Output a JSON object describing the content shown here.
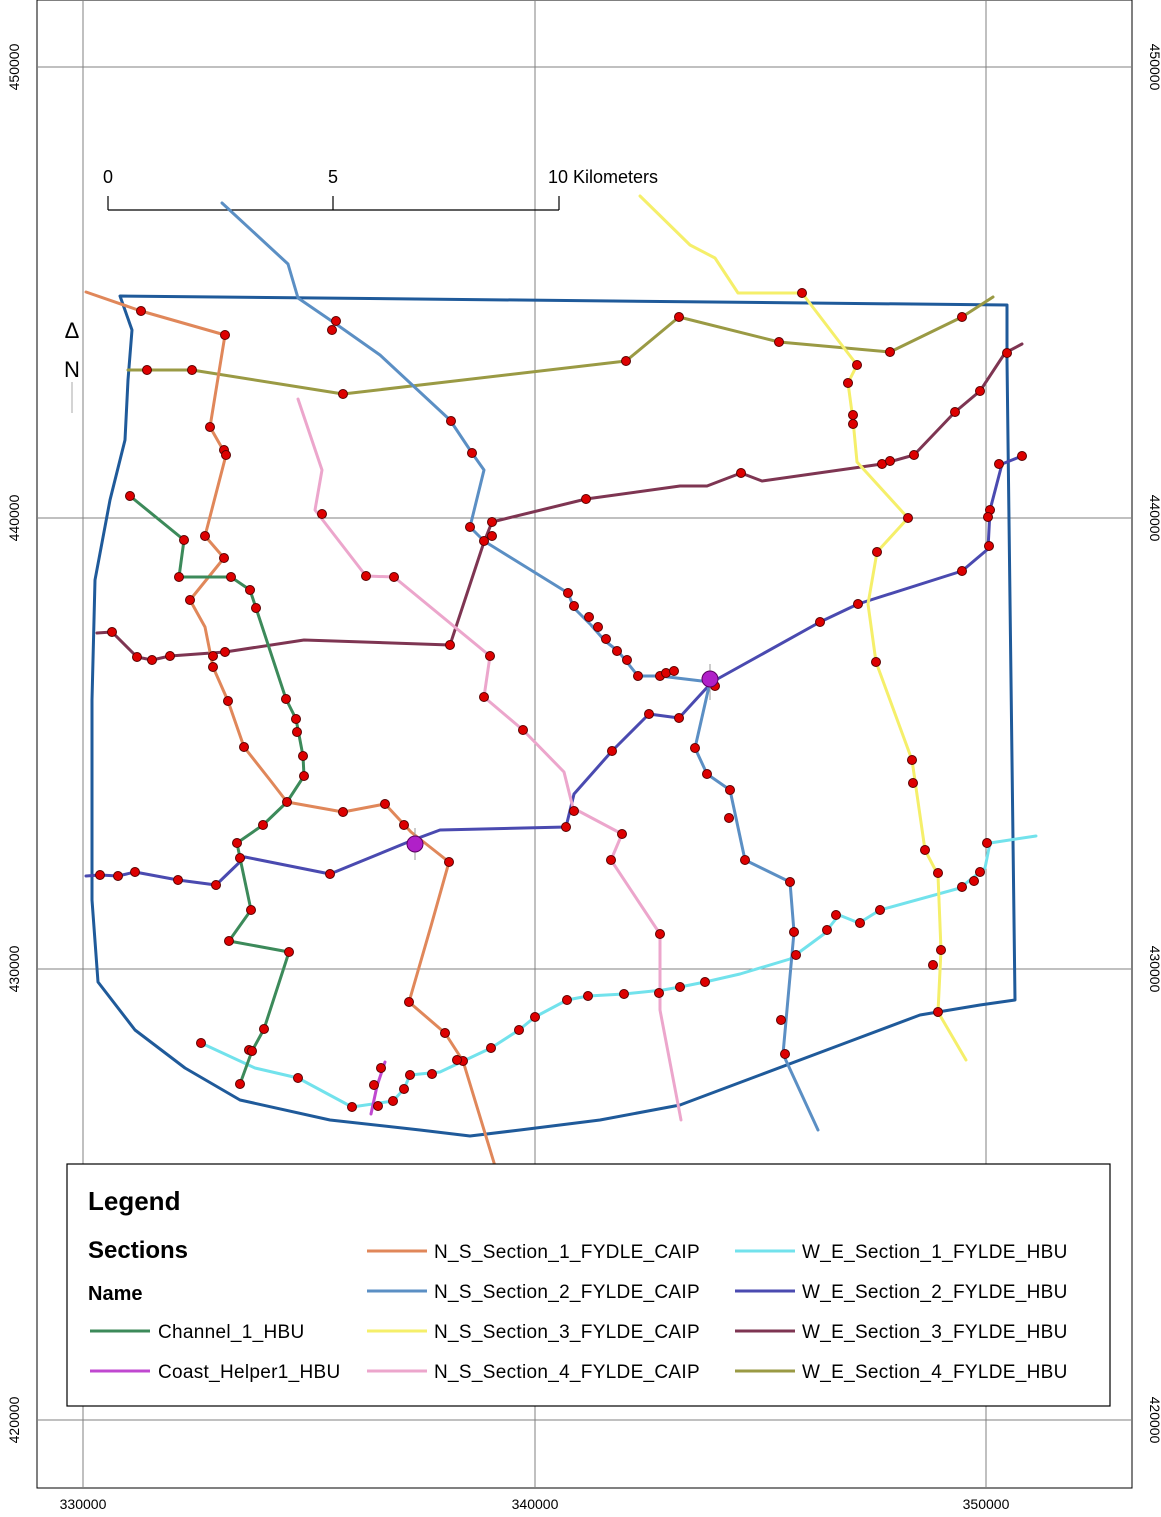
{
  "map": {
    "x_ticks": [
      "330000",
      "340000",
      "350000"
    ],
    "y_ticks": [
      "450000",
      "440000",
      "430000",
      "420000"
    ],
    "north_arrow": {
      "symbol": "Δ",
      "label": "N"
    },
    "scale_bar": {
      "labels": [
        "0",
        "5",
        "10 Kilometers"
      ]
    },
    "colors": {
      "boundary": "#1f5a9a",
      "N_S_Section_1_FYDLE_CAIP": "#e0875a",
      "N_S_Section_2_FYLDE_CAIP": "#5b8fc4",
      "N_S_Section_3_FYLDE_CAIP": "#f5ef6a",
      "N_S_Section_4_FYLDE_CAIP": "#eca6cc",
      "W_E_Section_1_FYLDE_HBU": "#72e2ec",
      "W_E_Section_2_FYLDE_HBU": "#4a4ab0",
      "W_E_Section_3_FYLDE_HBU": "#7e3552",
      "W_E_Section_4_FYLDE_HBU": "#9a9a44",
      "Channel_1_HBU": "#3c8a5a",
      "Coast_Helper1_HBU": "#c048d0",
      "point_fill": "#dd0000",
      "junction_fill": "#b020c8"
    }
  },
  "legend": {
    "title": "Legend",
    "group": "Sections",
    "field": "Name",
    "items": [
      {
        "label": "Channel_1_HBU",
        "color": "#3c8a5a"
      },
      {
        "label": "Coast_Helper1_HBU",
        "color": "#c048d0"
      },
      {
        "label": "N_S_Section_1_FYDLE_CAIP",
        "color": "#e0875a"
      },
      {
        "label": "N_S_Section_2_FYLDE_CAIP",
        "color": "#5b8fc4"
      },
      {
        "label": "N_S_Section_3_FYLDE_CAIP",
        "color": "#f5ef6a"
      },
      {
        "label": "N_S_Section_4_FYLDE_CAIP",
        "color": "#eca6cc"
      },
      {
        "label": "W_E_Section_1_FYLDE_HBU",
        "color": "#72e2ec"
      },
      {
        "label": "W_E_Section_2_FYLDE_HBU",
        "color": "#4a4ab0"
      },
      {
        "label": "W_E_Section_3_FYLDE_HBU",
        "color": "#7e3552"
      },
      {
        "label": "W_E_Section_4_FYLDE_HBU",
        "color": "#9a9a44"
      }
    ]
  }
}
